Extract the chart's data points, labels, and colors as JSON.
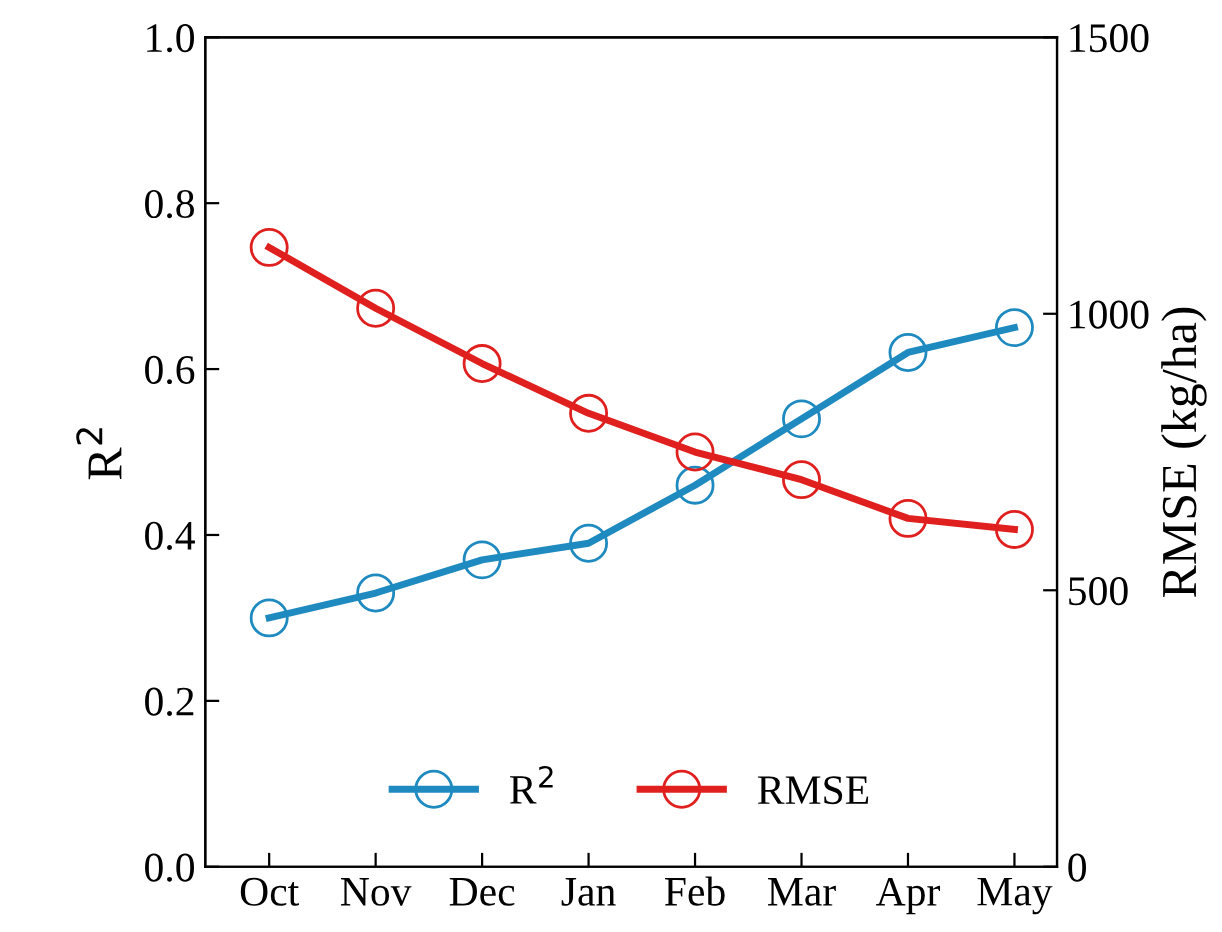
{
  "chart_data": {
    "type": "line",
    "ylabel": "R$^{2}$",
    "y2label": "RMSE (kg/ha)",
    "categories": [
      "Oct",
      "Nov",
      "Dec",
      "Jan",
      "Feb",
      "Mar",
      "Apr",
      "May"
    ],
    "series": [
      {
        "name": "R$^{2}$",
        "color": "#1f8ac0",
        "values": [
          0.3,
          0.33,
          0.37,
          0.39,
          0.46,
          0.54,
          0.62,
          0.65
        ]
      },
      {
        "name": "RMSE",
        "color": "#e0201e",
        "axis": "y2",
        "values": [
          1120,
          1010,
          910,
          820,
          750,
          700,
          630,
          610
        ]
      }
    ],
    "ylim": [
      0,
      1
    ],
    "yticks": [
      {
        "value": 0,
        "label": "0.0"
      },
      0.2,
      0.4,
      0.6,
      0.8,
      {
        "value": 1,
        "label": "1.0"
      }
    ],
    "y2lim": [
      0,
      1500
    ],
    "y2ticks": [
      0,
      500,
      1000,
      1500
    ],
    "legend": "bottom",
    "grid": false,
    "marker": "circle",
    "line_style": "solid"
  }
}
